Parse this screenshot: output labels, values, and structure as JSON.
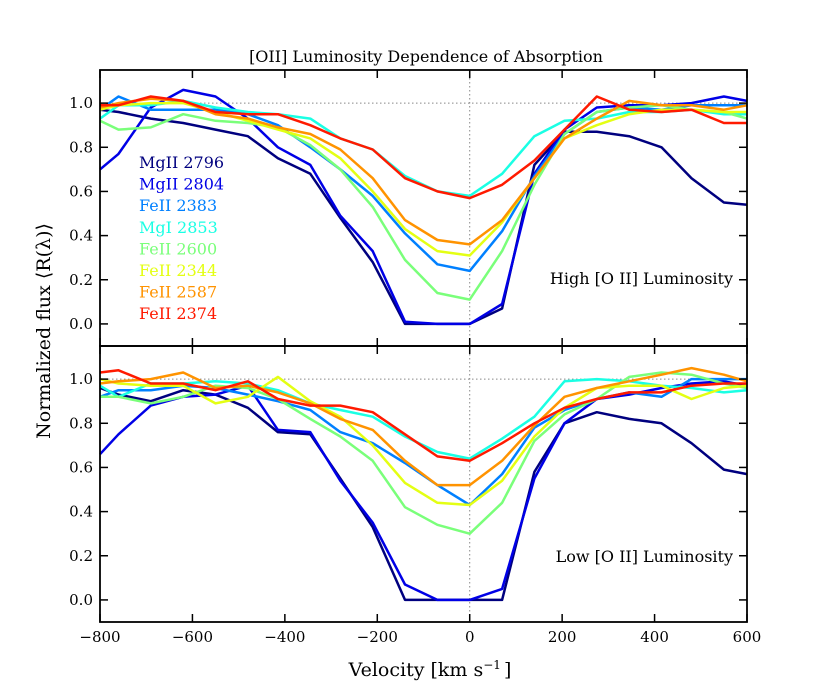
{
  "chart_data": {
    "type": "line",
    "title": "[OII] Luminosity Dependence of Absorption",
    "xlabel": "Velocity [km s",
    "xlabel_sup": "−1",
    "xlabel_end": "]",
    "ylabel": "Normalized flux ⟨R(λ)⟩",
    "xlim": [
      -800,
      600
    ],
    "ylim": [
      -0.1,
      1.15
    ],
    "xticks": [
      -800,
      -600,
      -400,
      -200,
      0,
      200,
      400,
      600
    ],
    "xtick_labels": [
      "−800",
      "−600",
      "−400",
      "−200",
      "0",
      "200",
      "400",
      "600"
    ],
    "yticks": [
      0.0,
      0.2,
      0.4,
      0.6,
      0.8,
      1.0
    ],
    "ytick_labels": [
      "0.0",
      "0.2",
      "0.4",
      "0.6",
      "0.8",
      "1.0"
    ],
    "reference_lines": {
      "y": 1.0,
      "x": 0
    },
    "x": [
      -800,
      -760,
      -690,
      -620,
      -550,
      -480,
      -415,
      -345,
      -280,
      -210,
      -140,
      -70,
      0,
      70,
      140,
      205,
      275,
      345,
      415,
      480,
      550,
      600
    ],
    "legend": [
      {
        "name": "MgII 2796",
        "color": "#00007f"
      },
      {
        "name": "MgII 2804",
        "color": "#0000e6"
      },
      {
        "name": "FeII  2383",
        "color": "#0080ff"
      },
      {
        "name": "MgI  2853",
        "color": "#1affe4"
      },
      {
        "name": "FeII  2600",
        "color": "#7aff7a"
      },
      {
        "name": "FeII  2344",
        "color": "#e4ff13"
      },
      {
        "name": "FeII  2587",
        "color": "#ff9300"
      },
      {
        "name": "FeII  2374",
        "color": "#ff1a00"
      }
    ],
    "panels": [
      {
        "label": "High [O II] Luminosity",
        "series": [
          {
            "name": "MgII 2796",
            "values": [
              0.97,
              0.96,
              0.93,
              0.91,
              0.88,
              0.85,
              0.75,
              0.68,
              0.48,
              0.28,
              0.0,
              0.0,
              0.0,
              0.07,
              0.72,
              0.87,
              0.87,
              0.85,
              0.8,
              0.66,
              0.55,
              0.54
            ]
          },
          {
            "name": "MgII 2804",
            "values": [
              0.7,
              0.77,
              0.98,
              1.06,
              1.03,
              0.93,
              0.8,
              0.72,
              0.49,
              0.33,
              0.01,
              0.0,
              0.0,
              0.09,
              0.68,
              0.88,
              0.98,
              0.99,
              0.99,
              1.0,
              1.03,
              1.01
            ]
          },
          {
            "name": "FeII  2383",
            "values": [
              0.97,
              1.03,
              0.97,
              0.97,
              0.97,
              0.95,
              0.9,
              0.8,
              0.7,
              0.58,
              0.41,
              0.27,
              0.24,
              0.42,
              0.67,
              0.86,
              0.96,
              0.98,
              0.97,
              0.99,
              0.99,
              0.99
            ]
          },
          {
            "name": "MgI  2853",
            "values": [
              0.93,
              0.99,
              0.99,
              1.01,
              0.98,
              0.96,
              0.95,
              0.93,
              0.84,
              0.79,
              0.67,
              0.6,
              0.58,
              0.68,
              0.85,
              0.92,
              0.93,
              0.96,
              0.96,
              0.97,
              0.95,
              0.95
            ]
          },
          {
            "name": "FeII  2600",
            "values": [
              0.92,
              0.88,
              0.89,
              0.95,
              0.92,
              0.91,
              0.89,
              0.81,
              0.7,
              0.53,
              0.29,
              0.14,
              0.11,
              0.33,
              0.63,
              0.86,
              0.96,
              0.98,
              0.99,
              0.97,
              0.96,
              0.93
            ]
          },
          {
            "name": "FeII  2344",
            "values": [
              0.97,
              0.99,
              1.0,
              1.0,
              0.96,
              0.92,
              0.88,
              0.84,
              0.75,
              0.6,
              0.43,
              0.33,
              0.31,
              0.46,
              0.66,
              0.84,
              0.9,
              0.95,
              0.97,
              0.97,
              0.96,
              0.96
            ]
          },
          {
            "name": "FeII  2587",
            "values": [
              0.98,
              1.0,
              1.02,
              1.01,
              0.95,
              0.93,
              0.89,
              0.86,
              0.79,
              0.66,
              0.47,
              0.38,
              0.36,
              0.47,
              0.66,
              0.84,
              0.93,
              1.01,
              0.99,
              0.99,
              0.97,
              0.99
            ]
          },
          {
            "name": "FeII  2374",
            "values": [
              0.99,
              0.99,
              1.03,
              1.01,
              0.96,
              0.95,
              0.95,
              0.9,
              0.84,
              0.79,
              0.66,
              0.6,
              0.57,
              0.63,
              0.74,
              0.88,
              1.03,
              0.97,
              0.96,
              0.97,
              0.91,
              0.91
            ]
          }
        ]
      },
      {
        "label": "Low [O II] Luminosity",
        "series": [
          {
            "name": "MgII 2796",
            "values": [
              0.96,
              0.93,
              0.9,
              0.95,
              0.93,
              0.87,
              0.76,
              0.75,
              0.55,
              0.33,
              0.0,
              0.0,
              0.0,
              0.0,
              0.58,
              0.8,
              0.85,
              0.82,
              0.8,
              0.71,
              0.59,
              0.57
            ]
          },
          {
            "name": "MgII 2804",
            "values": [
              0.66,
              0.75,
              0.88,
              0.92,
              0.93,
              0.97,
              0.77,
              0.76,
              0.54,
              0.35,
              0.07,
              0.0,
              0.0,
              0.05,
              0.55,
              0.8,
              0.91,
              0.93,
              0.96,
              0.98,
              0.99,
              0.97
            ]
          },
          {
            "name": "FeII  2383",
            "values": [
              0.92,
              0.95,
              0.95,
              0.97,
              0.96,
              0.93,
              0.9,
              0.86,
              0.76,
              0.71,
              0.62,
              0.52,
              0.43,
              0.57,
              0.78,
              0.86,
              0.91,
              0.94,
              0.92,
              1.0,
              1.0,
              1.0
            ]
          },
          {
            "name": "MgI  2853",
            "values": [
              0.97,
              0.92,
              0.98,
              0.98,
              0.99,
              0.98,
              0.95,
              0.89,
              0.86,
              0.83,
              0.74,
              0.67,
              0.64,
              0.73,
              0.83,
              0.99,
              1.0,
              0.99,
              0.97,
              0.96,
              0.94,
              0.95
            ]
          },
          {
            "name": "FeII  2600",
            "values": [
              0.92,
              0.92,
              0.89,
              0.92,
              0.97,
              0.96,
              0.91,
              0.82,
              0.74,
              0.63,
              0.42,
              0.34,
              0.3,
              0.44,
              0.72,
              0.84,
              0.91,
              1.01,
              1.03,
              1.02,
              0.98,
              0.96
            ]
          },
          {
            "name": "FeII  2344",
            "values": [
              1.0,
              0.98,
              0.97,
              0.97,
              0.89,
              0.92,
              1.01,
              0.9,
              0.83,
              0.7,
              0.53,
              0.44,
              0.43,
              0.54,
              0.74,
              0.87,
              0.96,
              0.97,
              0.97,
              0.91,
              0.96,
              0.97
            ]
          },
          {
            "name": "FeII  2587",
            "values": [
              0.98,
              0.99,
              1.0,
              1.03,
              0.96,
              0.97,
              0.94,
              0.89,
              0.82,
              0.77,
              0.63,
              0.52,
              0.52,
              0.63,
              0.79,
              0.92,
              0.96,
              0.99,
              1.02,
              1.05,
              1.02,
              0.99
            ]
          },
          {
            "name": "FeII  2374",
            "values": [
              1.03,
              1.04,
              0.98,
              0.98,
              0.95,
              0.99,
              0.91,
              0.88,
              0.88,
              0.85,
              0.75,
              0.65,
              0.63,
              0.71,
              0.8,
              0.87,
              0.91,
              0.94,
              0.94,
              0.97,
              0.98,
              0.98
            ]
          }
        ]
      }
    ]
  }
}
